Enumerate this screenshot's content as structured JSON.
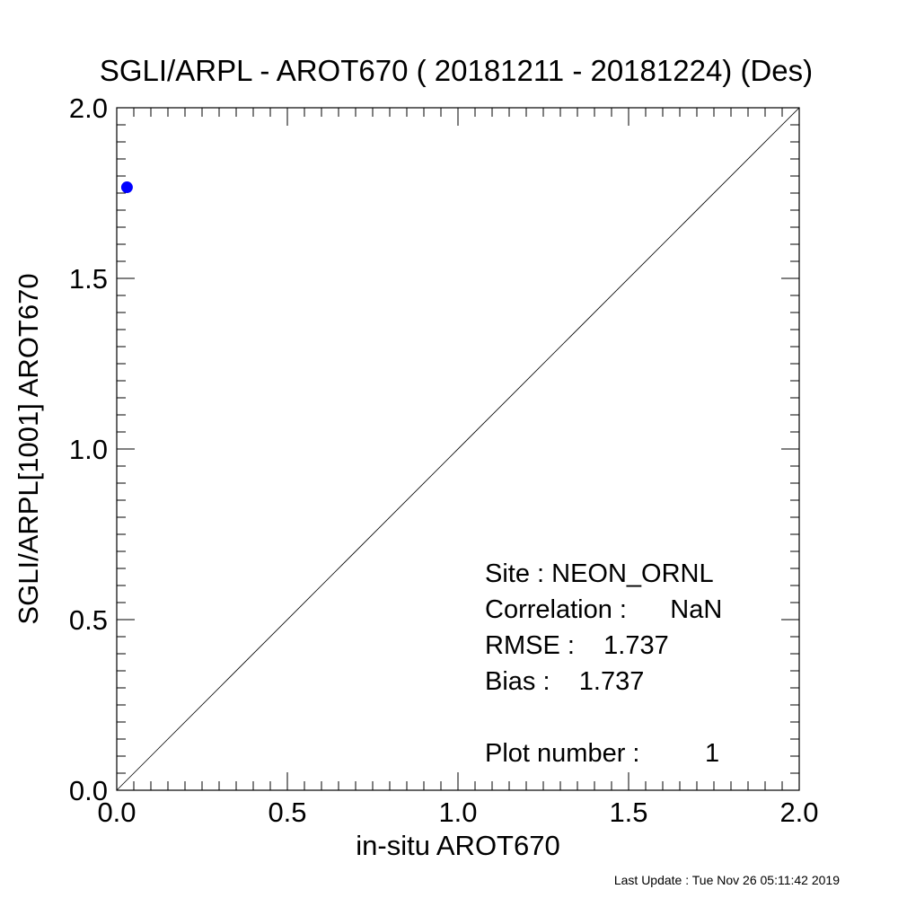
{
  "chart_data": {
    "type": "scatter",
    "title": "SGLI/ARPL - AROT670 ( 20181211 - 20181224) (Des)",
    "xlabel": "in-situ AROT670",
    "ylabel": "SGLI/ARPL[1001]    AROT670",
    "xlim": [
      0.0,
      2.0
    ],
    "ylim": [
      0.0,
      2.0
    ],
    "xticks": [
      "0.0",
      "0.5",
      "1.0",
      "1.5",
      "2.0"
    ],
    "yticks": [
      "0.0",
      "0.5",
      "1.0",
      "1.5",
      "2.0"
    ],
    "series": [
      {
        "points": [
          {
            "x": 0.03,
            "y": 1.767
          }
        ],
        "color": "#0000ff"
      }
    ],
    "reference_line": {
      "from": [
        0,
        0
      ],
      "to": [
        2,
        2
      ]
    },
    "grid": false
  },
  "stats": {
    "site": "Site : NEON_ORNL",
    "correlation": "Correlation :      NaN",
    "rmse": "RMSE :    1.737",
    "bias": "Bias :    1.737",
    "plot_number": "Plot number :         1"
  },
  "footer": "Last Update : Tue Nov 26 05:11:42 2019"
}
